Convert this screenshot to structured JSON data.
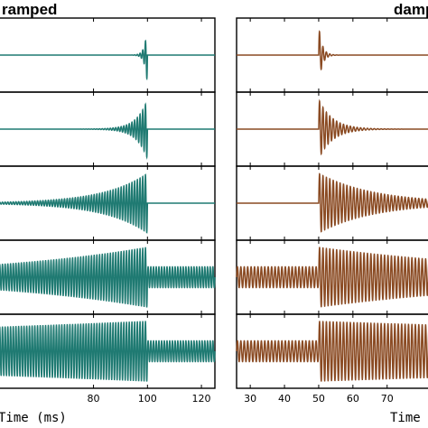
{
  "chart_data": [
    {
      "type": "line",
      "title": "ramped",
      "xlabel": "Time (ms)",
      "xlim": [
        44,
        125
      ],
      "xticks": [
        80,
        100,
        120
      ],
      "color": "#1f7a72",
      "envelope": "ramped",
      "onset_ms": 100,
      "carrier_period_ms": 1.0,
      "rows": [
        {
          "time_constant_ms": 1,
          "description": "short ramp ending at 100 ms"
        },
        {
          "time_constant_ms": 4,
          "description": "ramp ending at 100 ms"
        },
        {
          "time_constant_ms": 16,
          "description": "ramp ending at 100 ms"
        },
        {
          "time_constant_ms": 64,
          "description": "long ramp, repeating"
        },
        {
          "time_constant_ms": 256,
          "description": "near-constant amplitude"
        }
      ]
    },
    {
      "type": "line",
      "title": "damped",
      "xlabel": "Time (ms)",
      "xlim": [
        26,
        83
      ],
      "xticks": [
        30,
        40,
        50,
        60,
        70
      ],
      "color": "#8a4a22",
      "envelope": "damped",
      "onset_ms": 50,
      "carrier_period_ms": 1.0,
      "rows": [
        {
          "time_constant_ms": 1,
          "description": "short decay from 50 ms"
        },
        {
          "time_constant_ms": 4,
          "description": "decay from 50 ms"
        },
        {
          "time_constant_ms": 16,
          "description": "decay from 50 ms"
        },
        {
          "time_constant_ms": 64,
          "description": "long decay, repeating"
        },
        {
          "time_constant_ms": 256,
          "description": "near-constant amplitude"
        }
      ]
    }
  ]
}
